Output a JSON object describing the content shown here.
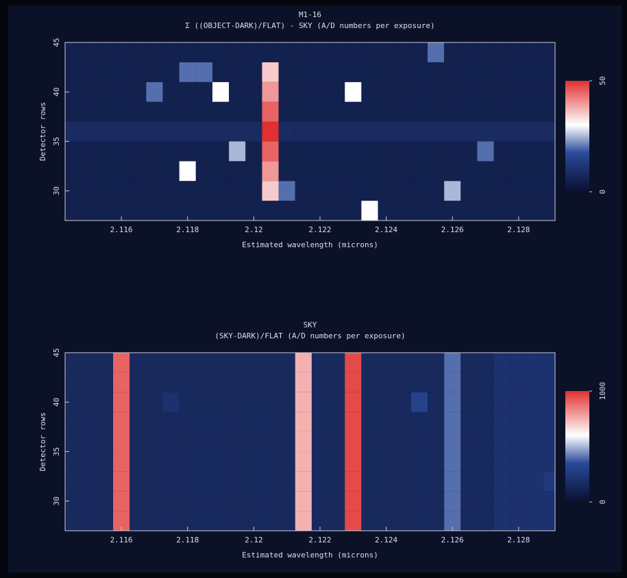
{
  "chart_data": [
    {
      "type": "heatmap",
      "title": "M1-16",
      "subtitle": "Σ ((OBJECT-DARK)/FLAT) - SKY (A/D numbers per exposure)",
      "x_label": "Estimated wavelength (microns)",
      "y_label": "Detector rows",
      "x": [
        2.1145,
        2.115,
        2.1155,
        2.116,
        2.1165,
        2.117,
        2.1175,
        2.118,
        2.1185,
        2.119,
        2.1195,
        2.12,
        2.1205,
        2.121,
        2.1215,
        2.122,
        2.1225,
        2.123,
        2.1235,
        2.124,
        2.1245,
        2.125,
        2.1255,
        2.126,
        2.1265,
        2.127,
        2.1275,
        2.128,
        2.1285,
        2.129
      ],
      "y": [
        28,
        30,
        32,
        34,
        36,
        38,
        40,
        42,
        44
      ],
      "z": [
        [
          5,
          5,
          5,
          5,
          5,
          5,
          5,
          5,
          5,
          5,
          5,
          5,
          5,
          5,
          5,
          5,
          5,
          5,
          30,
          5,
          5,
          5,
          5,
          5,
          5,
          5,
          5,
          5,
          5,
          5
        ],
        [
          5,
          5,
          5,
          5,
          5,
          5,
          5,
          5,
          5,
          5,
          5,
          5,
          35,
          20,
          5,
          5,
          5,
          5,
          5,
          5,
          5,
          5,
          5,
          25,
          5,
          5,
          5,
          5,
          5,
          5
        ],
        [
          5,
          5,
          5,
          5,
          5,
          5,
          5,
          30,
          5,
          5,
          5,
          5,
          40,
          5,
          5,
          5,
          5,
          5,
          5,
          5,
          5,
          5,
          5,
          5,
          5,
          5,
          5,
          5,
          5,
          5
        ],
        [
          5,
          5,
          5,
          5,
          5,
          5,
          5,
          5,
          5,
          5,
          25,
          5,
          45,
          5,
          5,
          5,
          5,
          5,
          5,
          5,
          5,
          5,
          5,
          5,
          5,
          20,
          5,
          5,
          5,
          5
        ],
        [
          8,
          8,
          8,
          8,
          8,
          8,
          8,
          8,
          8,
          8,
          8,
          8,
          50,
          8,
          8,
          8,
          8,
          8,
          8,
          8,
          8,
          8,
          8,
          8,
          8,
          8,
          8,
          8,
          8,
          8
        ],
        [
          5,
          5,
          5,
          5,
          5,
          5,
          5,
          5,
          5,
          5,
          5,
          5,
          45,
          5,
          5,
          5,
          5,
          5,
          5,
          5,
          5,
          5,
          5,
          5,
          5,
          5,
          5,
          5,
          5,
          5
        ],
        [
          5,
          5,
          5,
          5,
          5,
          20,
          5,
          5,
          5,
          30,
          5,
          5,
          40,
          5,
          5,
          5,
          5,
          30,
          5,
          5,
          5,
          5,
          5,
          5,
          5,
          5,
          5,
          5,
          5,
          5
        ],
        [
          5,
          5,
          5,
          5,
          5,
          5,
          5,
          20,
          20,
          5,
          5,
          5,
          35,
          5,
          5,
          5,
          5,
          5,
          5,
          5,
          5,
          5,
          5,
          5,
          5,
          5,
          5,
          5,
          5,
          5
        ],
        [
          5,
          5,
          5,
          5,
          5,
          5,
          5,
          5,
          5,
          5,
          5,
          5,
          5,
          5,
          5,
          5,
          5,
          5,
          5,
          5,
          5,
          5,
          20,
          5,
          5,
          5,
          5,
          5,
          5,
          5
        ]
      ],
      "xlim": [
        2.1143,
        2.1291
      ],
      "ylim": [
        27,
        45
      ],
      "xticks": [
        2.116,
        2.118,
        2.12,
        2.122,
        2.124,
        2.126,
        2.128
      ],
      "yticks": [
        30,
        35,
        40,
        45
      ],
      "zlim": [
        0,
        50
      ],
      "zticks": [
        0,
        50
      ],
      "colors": [
        "#0a1030",
        "#2a4a9a",
        "#ffffff",
        "#e03030"
      ]
    },
    {
      "type": "heatmap",
      "title": "SKY",
      "subtitle": "(SKY-DARK)/FLAT (A/D numbers per exposure)",
      "x_label": "Estimated wavelength (microns)",
      "y_label": "Detector rows",
      "x": [
        2.1145,
        2.115,
        2.1155,
        2.116,
        2.1165,
        2.117,
        2.1175,
        2.118,
        2.1185,
        2.119,
        2.1195,
        2.12,
        2.1205,
        2.121,
        2.1215,
        2.122,
        2.1225,
        2.123,
        2.1235,
        2.124,
        2.1245,
        2.125,
        2.1255,
        2.126,
        2.1265,
        2.127,
        2.1275,
        2.128,
        2.1285,
        2.129
      ],
      "y": [
        28,
        30,
        32,
        34,
        36,
        38,
        40,
        42,
        44
      ],
      "z": [
        [
          150,
          150,
          150,
          900,
          150,
          150,
          150,
          150,
          150,
          150,
          150,
          150,
          150,
          150,
          750,
          150,
          150,
          950,
          150,
          150,
          150,
          150,
          150,
          400,
          150,
          150,
          200,
          200,
          200,
          200
        ],
        [
          150,
          150,
          150,
          900,
          150,
          150,
          150,
          150,
          150,
          150,
          150,
          150,
          150,
          150,
          750,
          150,
          150,
          950,
          150,
          150,
          150,
          150,
          150,
          400,
          150,
          150,
          200,
          200,
          200,
          200
        ],
        [
          150,
          150,
          150,
          900,
          150,
          150,
          150,
          150,
          150,
          150,
          150,
          150,
          150,
          150,
          750,
          150,
          150,
          950,
          150,
          150,
          150,
          150,
          150,
          400,
          150,
          150,
          200,
          200,
          200,
          250
        ],
        [
          150,
          150,
          150,
          900,
          150,
          150,
          150,
          150,
          150,
          150,
          150,
          150,
          150,
          150,
          750,
          150,
          150,
          950,
          150,
          150,
          150,
          150,
          150,
          400,
          150,
          150,
          200,
          200,
          200,
          200
        ],
        [
          150,
          150,
          150,
          900,
          150,
          150,
          150,
          150,
          150,
          150,
          150,
          150,
          150,
          150,
          750,
          150,
          150,
          950,
          150,
          150,
          150,
          150,
          150,
          400,
          150,
          150,
          200,
          200,
          200,
          200
        ],
        [
          150,
          150,
          150,
          900,
          150,
          150,
          150,
          150,
          150,
          150,
          150,
          150,
          150,
          150,
          750,
          150,
          150,
          950,
          150,
          150,
          150,
          150,
          150,
          400,
          150,
          150,
          200,
          200,
          200,
          200
        ],
        [
          150,
          150,
          150,
          900,
          150,
          150,
          200,
          150,
          150,
          150,
          150,
          150,
          150,
          150,
          750,
          150,
          150,
          950,
          150,
          150,
          150,
          300,
          150,
          400,
          150,
          150,
          200,
          200,
          200,
          200
        ],
        [
          150,
          150,
          150,
          900,
          150,
          150,
          150,
          150,
          150,
          150,
          150,
          150,
          150,
          150,
          750,
          150,
          150,
          950,
          150,
          150,
          150,
          150,
          150,
          400,
          150,
          150,
          200,
          200,
          200,
          200
        ],
        [
          150,
          150,
          150,
          900,
          150,
          150,
          150,
          150,
          150,
          150,
          150,
          150,
          150,
          150,
          750,
          150,
          150,
          950,
          150,
          150,
          150,
          150,
          150,
          400,
          150,
          150,
          200,
          200,
          200,
          200
        ]
      ],
      "xlim": [
        2.1143,
        2.1291
      ],
      "ylim": [
        27,
        45
      ],
      "xticks": [
        2.116,
        2.118,
        2.12,
        2.122,
        2.124,
        2.126,
        2.128
      ],
      "yticks": [
        30,
        35,
        40,
        45
      ],
      "zlim": [
        0,
        1000
      ],
      "zticks": [
        0,
        1000
      ],
      "colors": [
        "#0a1030",
        "#2a4a9a",
        "#ffffff",
        "#e03030"
      ]
    }
  ]
}
